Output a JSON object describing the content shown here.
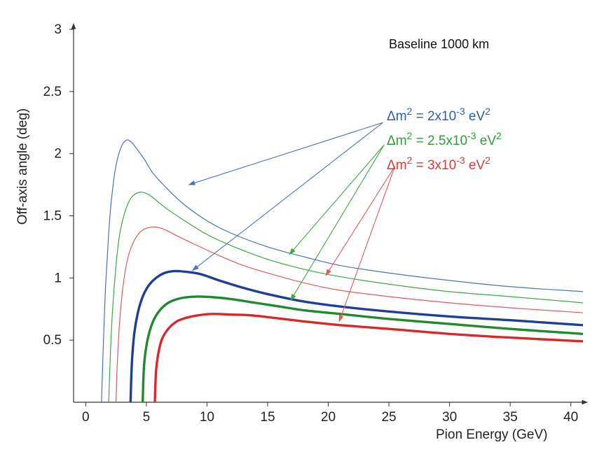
{
  "chart_data": {
    "type": "line",
    "title": "",
    "annotation": "Baseline 1000 km",
    "xlabel": "Pion Energy (GeV)",
    "ylabel": "Off-axis angle (deg)",
    "xlim": [
      -1,
      41
    ],
    "ylim": [
      0,
      3
    ],
    "x_ticks": [
      "0",
      "5",
      "10",
      "15",
      "20",
      "25",
      "30",
      "35",
      "40"
    ],
    "y_ticks": [
      "0.5",
      "1",
      "1.5",
      "2",
      "2.5",
      "3"
    ],
    "legend": [
      {
        "label_parts": [
          "Δm",
          "2",
          " = 2x10",
          "-3",
          " eV",
          "2"
        ],
        "color": "#2c5fa8"
      },
      {
        "label_parts": [
          "Δm",
          "2",
          " = 2.5x10",
          "-3",
          " eV",
          "2"
        ],
        "color": "#2e9e3a"
      },
      {
        "label_parts": [
          "Δm",
          "2",
          " = 3x10",
          "-3",
          " eV",
          "2"
        ],
        "color": "#d83a3a"
      }
    ],
    "series": [
      {
        "name": "upper, Δm² = 2x10⁻³ eV²",
        "color": "#4a72b8",
        "thick": false,
        "x": [
          1.3,
          1.4,
          1.6,
          1.8,
          2.0,
          2.3,
          2.6,
          3.0,
          3.4,
          3.8,
          4.2,
          4.8,
          5.5,
          6.5,
          8,
          10,
          12,
          15,
          18,
          21,
          25,
          30,
          35,
          41
        ],
        "y": [
          0,
          0.3,
          0.85,
          1.2,
          1.5,
          1.78,
          1.95,
          2.07,
          2.11,
          2.09,
          2.04,
          1.96,
          1.85,
          1.74,
          1.6,
          1.46,
          1.36,
          1.25,
          1.17,
          1.1,
          1.04,
          0.98,
          0.93,
          0.89
        ]
      },
      {
        "name": "upper, Δm² = 2.5x10⁻³ eV²",
        "color": "#3aa844",
        "thick": false,
        "x": [
          1.9,
          2.0,
          2.2,
          2.5,
          2.8,
          3.2,
          3.6,
          4.0,
          4.5,
          5.0,
          5.5,
          6.5,
          8,
          10,
          12,
          15,
          18,
          21,
          25,
          30,
          35,
          41
        ],
        "y": [
          0,
          0.3,
          0.72,
          1.1,
          1.35,
          1.52,
          1.62,
          1.67,
          1.69,
          1.68,
          1.65,
          1.57,
          1.47,
          1.35,
          1.26,
          1.15,
          1.07,
          1.01,
          0.95,
          0.89,
          0.85,
          0.8
        ]
      },
      {
        "name": "upper, Δm² = 3x10⁻³ eV²",
        "color": "#e05a5a",
        "thick": false,
        "x": [
          2.5,
          2.6,
          2.8,
          3.1,
          3.5,
          4.0,
          4.5,
          5.0,
          5.7,
          6.5,
          7.5,
          9,
          11,
          13,
          15,
          18,
          21,
          25,
          30,
          35,
          41
        ],
        "y": [
          0,
          0.3,
          0.65,
          0.95,
          1.17,
          1.3,
          1.37,
          1.4,
          1.41,
          1.39,
          1.34,
          1.27,
          1.18,
          1.1,
          1.04,
          0.96,
          0.9,
          0.85,
          0.8,
          0.76,
          0.72
        ]
      },
      {
        "name": "lower, Δm² = 2x10⁻³ eV²",
        "color": "#1f3f93",
        "thick": true,
        "x": [
          3.7,
          3.8,
          4.0,
          4.3,
          4.7,
          5.2,
          5.8,
          6.5,
          7.3,
          8.2,
          9.5,
          11,
          13,
          15,
          18,
          21,
          25,
          30,
          35,
          41
        ],
        "y": [
          0,
          0.3,
          0.55,
          0.72,
          0.85,
          0.94,
          1.0,
          1.04,
          1.055,
          1.05,
          1.03,
          0.98,
          0.92,
          0.87,
          0.81,
          0.77,
          0.73,
          0.69,
          0.66,
          0.62
        ]
      },
      {
        "name": "lower, Δm² = 2.5x10⁻³ eV²",
        "color": "#1f8a30",
        "thick": true,
        "x": [
          4.7,
          4.8,
          5.0,
          5.3,
          5.7,
          6.3,
          7.0,
          8.0,
          9.2,
          10.5,
          12,
          14,
          16,
          18,
          21,
          25,
          30,
          35,
          41
        ],
        "y": [
          0,
          0.28,
          0.45,
          0.58,
          0.68,
          0.76,
          0.81,
          0.84,
          0.85,
          0.845,
          0.83,
          0.8,
          0.77,
          0.74,
          0.71,
          0.67,
          0.63,
          0.59,
          0.55
        ]
      },
      {
        "name": "lower, Δm² = 3x10⁻³ eV²",
        "color": "#d62a2a",
        "thick": true,
        "x": [
          5.7,
          5.8,
          6.0,
          6.3,
          6.8,
          7.5,
          8.3,
          9.3,
          10.5,
          12,
          13.5,
          15,
          18,
          21,
          25,
          30,
          35,
          41
        ],
        "y": [
          0,
          0.25,
          0.4,
          0.51,
          0.59,
          0.65,
          0.68,
          0.7,
          0.71,
          0.705,
          0.7,
          0.685,
          0.65,
          0.62,
          0.59,
          0.55,
          0.52,
          0.49
        ]
      }
    ],
    "arrows": [
      {
        "color": "#4a72b8",
        "from": [
          24.5,
          2.25
        ],
        "to": [
          8.5,
          1.75
        ]
      },
      {
        "color": "#4a72b8",
        "from": [
          24.5,
          2.25
        ],
        "to": [
          8.8,
          1.06
        ]
      },
      {
        "color": "#3aa844",
        "from": [
          24.6,
          2.07
        ],
        "to": [
          16.8,
          1.19
        ]
      },
      {
        "color": "#3aa844",
        "from": [
          24.6,
          2.07
        ],
        "to": [
          16.9,
          0.82
        ]
      },
      {
        "color": "#e05a5a",
        "from": [
          25.5,
          1.9
        ],
        "to": [
          19.8,
          1.02
        ]
      },
      {
        "color": "#e05a5a",
        "from": [
          25.5,
          1.9
        ],
        "to": [
          20.9,
          0.65
        ]
      }
    ],
    "grid": false,
    "legend_position": "top-right"
  }
}
